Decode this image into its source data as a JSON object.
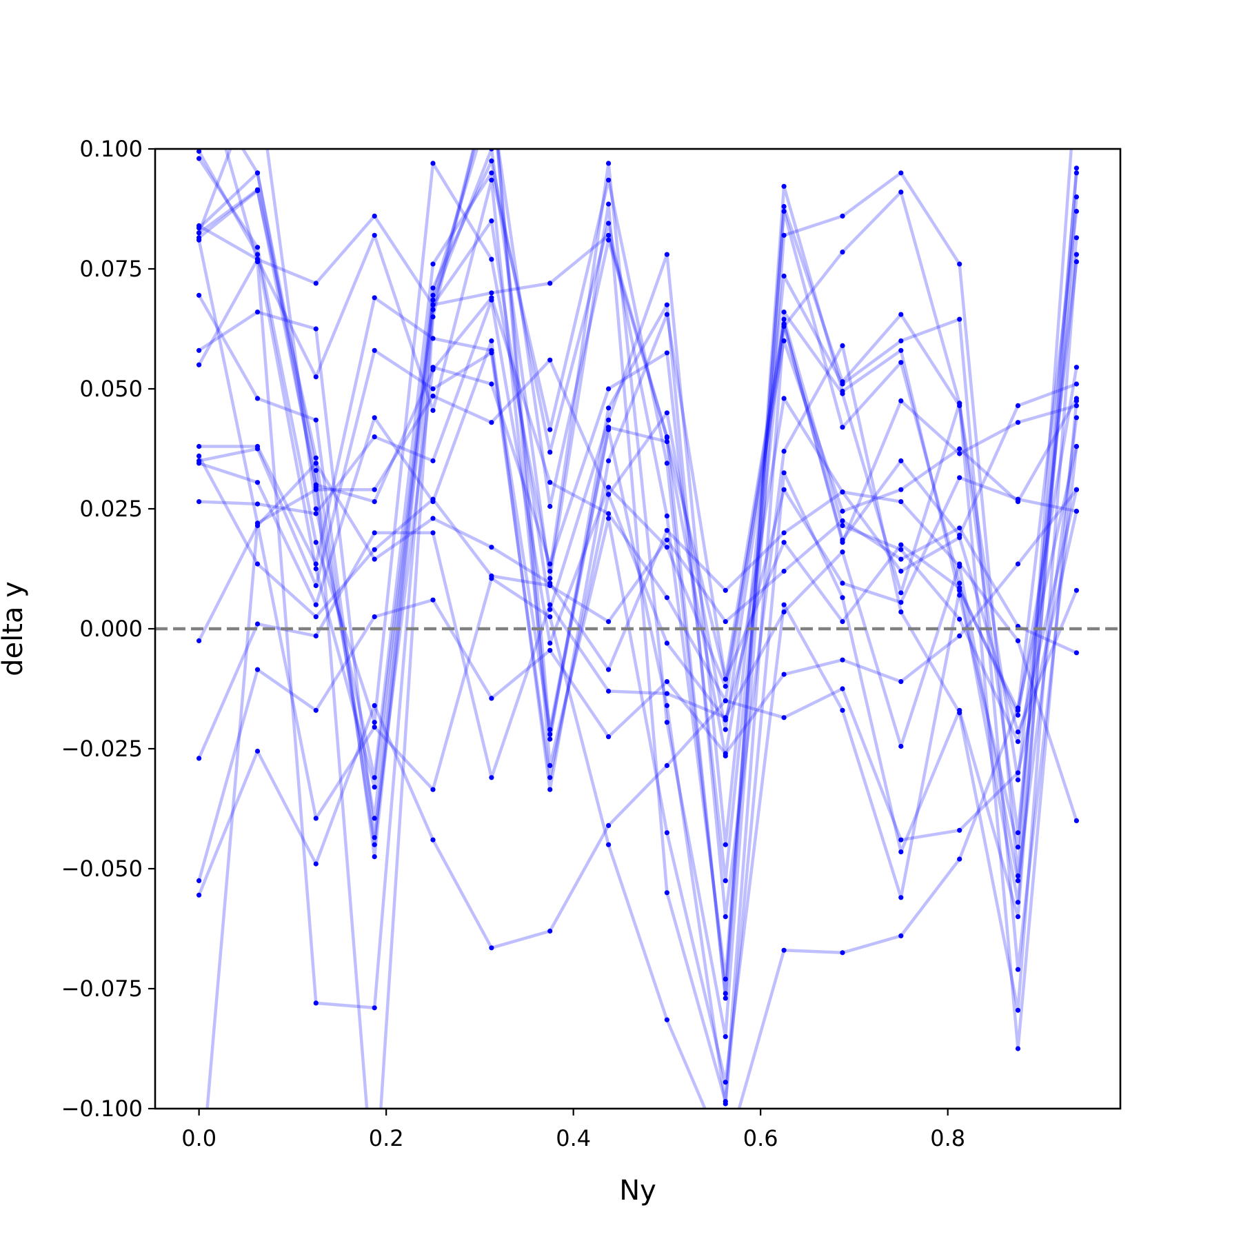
{
  "chart_data": {
    "type": "line",
    "title": "",
    "xlabel": "Ny",
    "ylabel": "delta y",
    "xlim": [
      -0.04688,
      0.98438
    ],
    "ylim": [
      -0.1,
      0.1
    ],
    "xticks": [
      {
        "value": 0.0,
        "label": "0.0"
      },
      {
        "value": 0.2,
        "label": "0.2"
      },
      {
        "value": 0.4,
        "label": "0.4"
      },
      {
        "value": 0.6,
        "label": "0.6"
      },
      {
        "value": 0.8,
        "label": "0.8"
      }
    ],
    "yticks": [
      {
        "value": 0.1,
        "label": "0.100"
      },
      {
        "value": 0.075,
        "label": "0.075"
      },
      {
        "value": 0.05,
        "label": "0.050"
      },
      {
        "value": 0.025,
        "label": "0.025"
      },
      {
        "value": 0.0,
        "label": "0.000"
      },
      {
        "value": -0.025,
        "label": "−0.025"
      },
      {
        "value": -0.05,
        "label": "−0.050"
      },
      {
        "value": -0.075,
        "label": "−0.075"
      },
      {
        "value": -0.1,
        "label": "−0.100"
      }
    ],
    "reference_line": {
      "y": 0.0,
      "style": "dashed",
      "color": "#808080"
    },
    "line_color": "#0000ff",
    "line_alpha": 0.25,
    "marker_color": "#0000ff",
    "grid": false,
    "x": [
      0.0,
      0.0625,
      0.125,
      0.1875,
      0.25,
      0.3125,
      0.375,
      0.4375,
      0.5,
      0.5625,
      0.625,
      0.6875,
      0.75,
      0.8125,
      0.875,
      0.9375
    ],
    "series": [
      {
        "values": [
          0.0815,
          0.0913,
          0.0356,
          -0.045,
          0.0695,
          0.11,
          0.0255,
          0.081,
          0.0398,
          -0.077,
          0.0922,
          0.0495,
          0.058,
          0.007,
          -0.0455,
          0.095
        ]
      },
      {
        "values": [
          0.0835,
          0.095,
          0.0295,
          -0.0395,
          0.071,
          0.0975,
          0.0368,
          0.0845,
          0.0235,
          -0.073,
          0.087,
          0.042,
          0.0555,
          0.0095,
          -0.057,
          0.09
        ]
      },
      {
        "values": [
          0.0825,
          0.115,
          0.025,
          -0.031,
          0.076,
          0.095,
          0.0415,
          0.0935,
          0.0345,
          -0.076,
          0.088,
          0.0515,
          0.0655,
          0.0465,
          -0.0425,
          0.0815
        ]
      },
      {
        "values": [
          0.098,
          0.0795,
          0.018,
          -0.0195,
          0.097,
          0.077,
          0.012,
          0.097,
          -0.0195,
          -0.085,
          0.082,
          0.086,
          0.095,
          0.076,
          -0.0515,
          0.115
        ]
      },
      {
        "values": [
          0.0995,
          0.078,
          0.0125,
          -0.033,
          0.0685,
          0.1,
          0.0105,
          0.0885,
          -0.055,
          -0.0985,
          0.063,
          0.0785,
          0.091,
          0.047,
          -0.0315,
          0.0765
        ]
      },
      {
        "values": [
          0.055,
          0.077,
          0.0525,
          0.082,
          0.0455,
          0.0935,
          -0.023,
          0.046,
          0.0675,
          -0.06,
          0.037,
          0.059,
          0.0035,
          -0.0175,
          -0.0795,
          0.078
        ]
      },
      {
        "values": [
          0.058,
          0.066,
          0.0625,
          -0.0435,
          0.0545,
          0.051,
          0.0135,
          0.05,
          0.0575,
          -0.0525,
          0.066,
          0.049,
          0.0075,
          0.047,
          -0.0875,
          0.0475
        ]
      },
      {
        "values": [
          0.0695,
          0.048,
          0.0435,
          -0.0475,
          0.0675,
          0.085,
          0.004,
          0.0435,
          0.078,
          -0.045,
          0.0735,
          0.051,
          0.06,
          0.0645,
          -0.071,
          0.038
        ]
      },
      {
        "values": [
          0.038,
          0.038,
          0.0135,
          0.069,
          0.0605,
          0.058,
          -0.021,
          0.042,
          0.039,
          -0.0265,
          0.048,
          0.0285,
          0.0265,
          0.013,
          -0.0525,
          0.044
        ]
      },
      {
        "values": [
          0.035,
          0.0375,
          0.009,
          0.058,
          0.05,
          0.0575,
          -0.031,
          0.028,
          0.045,
          -0.021,
          0.0635,
          0.0185,
          0.035,
          0.0195,
          0.0465,
          0.051
        ]
      },
      {
        "values": [
          0.0345,
          0.0305,
          0.005,
          0.044,
          0.0265,
          0.06,
          -0.0335,
          0.035,
          0.0655,
          -0.0105,
          0.0635,
          0.018,
          0.0475,
          0.0365,
          0.043,
          0.0465
        ]
      },
      {
        "values": [
          0.0265,
          0.026,
          0.024,
          0.04,
          0.035,
          0.0685,
          -0.003,
          0.0295,
          0.017,
          -0.012,
          0.06,
          0.0245,
          0.029,
          0.0375,
          0.0265,
          0.048
        ]
      },
      {
        "values": [
          0.0825,
          0.0915,
          0.03,
          0.0265,
          0.054,
          0.069,
          0.0305,
          0.024,
          0.0065,
          -0.015,
          0.0645,
          0.0215,
          0.0165,
          0.002,
          -0.0235,
          0.029
        ]
      },
      {
        "values": [
          0.081,
          0.022,
          0.029,
          0.029,
          0.0485,
          0.043,
          0.056,
          0.028,
          -0.003,
          -0.019,
          0.029,
          0.0095,
          0.0055,
          0.0315,
          0.027,
          0.0245
        ]
      },
      {
        "values": [
          -0.0025,
          0.0215,
          0.0345,
          0.0145,
          0.023,
          0.017,
          0.0095,
          -0.0085,
          0.0205,
          0.008,
          0.02,
          0.0285,
          0.012,
          0.019,
          -0.0215,
          0.008
        ]
      },
      {
        "values": [
          0.036,
          0.0135,
          0.0025,
          0.0165,
          0.027,
          0.011,
          0.009,
          0.0015,
          0.0185,
          0.0015,
          0.012,
          0.0225,
          0.0145,
          0.021,
          0.0005,
          -0.005
        ]
      },
      {
        "values": [
          -0.027,
          0.001,
          -0.0015,
          0.02,
          0.02,
          -0.031,
          0.005,
          -0.013,
          -0.0135,
          -0.0185,
          0.0035,
          0.016,
          -0.0245,
          0.0135,
          -0.0025,
          -0.04
        ]
      },
      {
        "values": [
          -0.0525,
          -0.0085,
          -0.017,
          0.0025,
          0.006,
          -0.0145,
          -0.0045,
          -0.0225,
          -0.011,
          -0.026,
          -0.0095,
          -0.0065,
          -0.011,
          -0.0015,
          0.0135,
          0.029
        ]
      },
      {
        "values": [
          -0.0555,
          -0.0255,
          -0.049,
          -0.016,
          -0.044,
          -0.0665,
          -0.063,
          -0.041,
          -0.0285,
          -0.015,
          -0.0185,
          -0.0125,
          -0.044,
          -0.042,
          -0.03,
          0.0245
        ]
      },
      {
        "values": [
          -0.12,
          0.022,
          -0.0395,
          -0.0205,
          -0.0335,
          0.0105,
          0.0025,
          -0.045,
          -0.0815,
          -0.11,
          -0.067,
          -0.0675,
          -0.064,
          -0.048,
          -0.0165,
          0.038
        ]
      },
      {
        "values": [
          0.084,
          0.077,
          0.072,
          0.086,
          0.0675,
          0.07,
          0.072,
          0.082,
          0.04,
          -0.0105,
          0.018,
          0.0015,
          0.0175,
          0.0085,
          -0.018,
          0.0545
        ]
      },
      {
        "values": [
          0.115,
          0.095,
          0.033,
          -0.12,
          0.065,
          0.115,
          -0.022,
          0.0415,
          -0.016,
          -0.099,
          0.0325,
          0.0065,
          -0.0465,
          -0.017,
          -0.06,
          0.096
        ]
      },
      {
        "values": [
          0.12,
          0.0765,
          -0.078,
          -0.079,
          0.0665,
          0.115,
          -0.0285,
          0.023,
          -0.0425,
          -0.0945,
          0.005,
          -0.017,
          -0.056,
          0.008,
          -0.017,
          0.087
        ]
      }
    ]
  }
}
